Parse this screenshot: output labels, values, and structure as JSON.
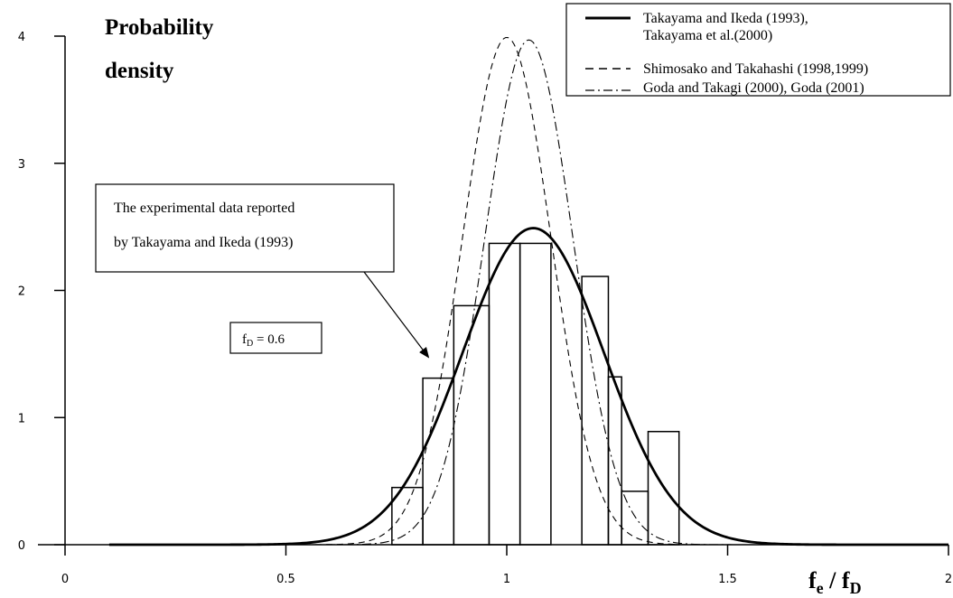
{
  "chart_data": {
    "type": "bar",
    "ylabel_line1": "Probability",
    "ylabel_line2": "density",
    "xlabel_main": "f",
    "xlabel_sub1": "e",
    "xlabel_sep": " / f",
    "xlabel_sub2": "D",
    "xlim": [
      0,
      2
    ],
    "ylim": [
      0,
      4
    ],
    "x_ticks": [
      0,
      0.5,
      1,
      1.5,
      2
    ],
    "x_tick_labels": [
      "0",
      "0.5",
      "1",
      "1.5",
      "2"
    ],
    "y_ticks": [
      0,
      1,
      2,
      3,
      4
    ],
    "y_tick_labels": [
      "0",
      "1",
      "2",
      "3",
      "4"
    ],
    "grid": false,
    "legend_position": "top-right",
    "histogram": {
      "name": "The experimental data reported by Takayama and Ikeda (1993)",
      "bins": [
        {
          "x0": 0.74,
          "x1": 0.81,
          "density": 0.45
        },
        {
          "x0": 0.81,
          "x1": 0.88,
          "density": 1.31
        },
        {
          "x0": 0.88,
          "x1": 0.96,
          "density": 1.88
        },
        {
          "x0": 0.96,
          "x1": 1.03,
          "density": 2.37
        },
        {
          "x0": 1.03,
          "x1": 1.1,
          "density": 2.37
        },
        {
          "x0": 1.17,
          "x1": 1.23,
          "density": 2.11
        },
        {
          "x0": 1.23,
          "x1": 1.26,
          "density": 1.32
        },
        {
          "x0": 1.26,
          "x1": 1.32,
          "density": 0.42
        },
        {
          "x0": 1.32,
          "x1": 1.39,
          "density": 0.89
        }
      ]
    },
    "series": [
      {
        "name_line1": "Takayama and Ikeda (1993),",
        "name_line2": "Takayama et al.(2000)",
        "style": "solid",
        "peak_x": 1.06,
        "peak_y": 2.49,
        "sd": 0.16
      },
      {
        "name_line1": "Shimosako and Takahashi (1998,1999)",
        "style": "dashed",
        "peak_x": 1.0,
        "peak_y": 3.99,
        "sd": 0.1
      },
      {
        "name_line1": "Goda and Takagi (2000), Goda (2001)",
        "style": "dashdot",
        "peak_x": 1.05,
        "peak_y": 3.97,
        "sd": 0.1
      }
    ],
    "annotations": {
      "callout_line1": "The experimental data reported",
      "callout_line2": "by Takayama and Ikeda (1993)",
      "param_main": "f",
      "param_sub": "D",
      "param_value": " = 0.6"
    }
  }
}
